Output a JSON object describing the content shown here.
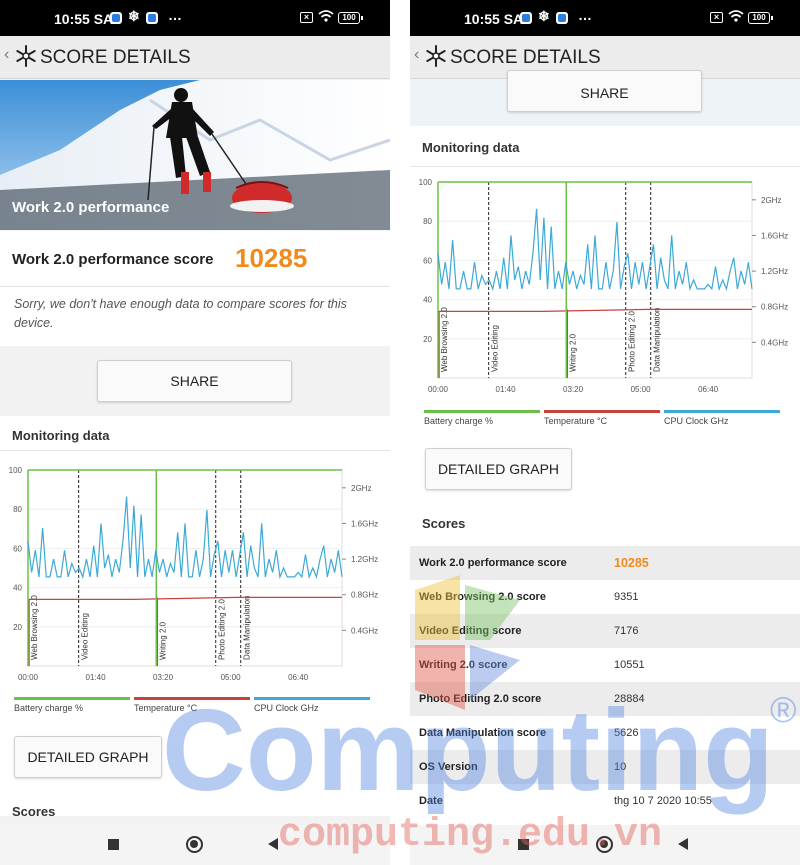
{
  "status_bar": {
    "time": "10:55 SA",
    "more": "…",
    "battery": "100"
  },
  "header": {
    "back_glyph": "‹",
    "title": "SCORE DETAILS"
  },
  "hero": {
    "title": "Work 2.0 performance",
    "image": "skier-pulling-sled-icon"
  },
  "score_card": {
    "label": "Work 2.0 performance score",
    "value": "10285"
  },
  "compare_note": "Sorry, we don't have enough data to compare scores for this device.",
  "share_label": "SHARE",
  "monitoring": {
    "title": "Monitoring data",
    "left_axis": [
      "100",
      "80",
      "60",
      "40",
      "20"
    ],
    "right_axis": [
      "2GHz",
      "1.6GHz",
      "1.2GHz",
      "0.8GHz",
      "0.4GHz"
    ],
    "time_axis": [
      "00:00",
      "01:40",
      "03:20",
      "05:00",
      "06:40"
    ],
    "sections": [
      "Web Browsing 2.0",
      "Video Editing",
      "Writing 2.0",
      "Photo Editing 2.0",
      "Data Manipulation"
    ],
    "legend": [
      {
        "label": "Battery charge %",
        "color": "#6cc04a"
      },
      {
        "label": "Temperature °C",
        "color": "#c9423c"
      },
      {
        "label": "CPU Clock GHz",
        "color": "#3da9d6"
      }
    ]
  },
  "chart_data": {
    "type": "line",
    "x_range_seconds": [
      0,
      465
    ],
    "x_ticks": [
      "00:00",
      "01:40",
      "03:20",
      "05:00",
      "06:40"
    ],
    "left_ylim": [
      0,
      100
    ],
    "right_ylim_ghz": [
      0,
      2.2
    ],
    "section_start_times": [
      "00:00",
      "01:15",
      "03:10",
      "04:38",
      "05:15"
    ],
    "series": [
      {
        "name": "Battery charge %",
        "color": "#6cc04a",
        "axis": "left",
        "values": [
          100,
          100
        ]
      },
      {
        "name": "Temperature °C",
        "color": "#c9423c",
        "axis": "left",
        "values": [
          34,
          34,
          35,
          35
        ]
      },
      {
        "name": "CPU Clock GHz",
        "color": "#3da9d6",
        "axis": "right",
        "values": [
          1.4,
          1.05,
          1.3,
          1.0,
          1.55,
          1.0,
          1.0,
          1.2,
          1.0,
          1.0,
          1.3,
          1.0,
          1.15,
          1.05,
          1.1,
          1.0,
          1.2,
          1.0,
          1.35,
          1.0,
          1.6,
          1.1,
          1.25,
          1.0,
          1.2,
          1.05,
          1.4,
          1.9,
          1.1,
          1.8,
          1.0,
          1.7,
          1.0,
          1.2,
          1.0,
          1.3,
          1.05,
          1.2,
          1.0,
          1.15,
          1.05,
          1.5,
          1.0,
          1.6,
          1.0,
          1.0,
          1.3,
          1.0,
          1.2,
          1.75,
          1.0,
          1.25,
          1.4,
          1.0,
          1.3,
          1.05,
          1.3,
          1.0,
          1.25,
          1.5,
          1.0,
          1.35,
          1.1,
          1.0,
          1.6,
          1.0,
          1.2,
          1.05,
          1.3,
          1.0,
          1.1,
          1.0,
          1.0,
          1.0,
          1.05,
          1.0,
          1.25,
          1.0,
          1.1,
          1.0,
          1.2,
          1.35,
          1.0,
          1.2,
          1.05,
          1.3,
          1.0
        ]
      }
    ]
  },
  "detailed_graph_label": "DETAILED GRAPH",
  "scores": {
    "title": "Scores",
    "rows": [
      {
        "label": "Work 2.0 performance score",
        "value": "10285"
      },
      {
        "label": "Web Browsing 2.0 score",
        "value": "9351"
      },
      {
        "label": "Video Editing score",
        "value": "7176"
      },
      {
        "label": "Writing 2.0 score",
        "value": "10551"
      },
      {
        "label": "Photo Editing 2.0 score",
        "value": "28884"
      },
      {
        "label": "Data Manipulation score",
        "value": "5626"
      },
      {
        "label": "OS Version",
        "value": "10"
      },
      {
        "label": "Date",
        "value": "thg 10 7 2020 10:55"
      }
    ]
  },
  "watermark": {
    "brand": "Computing",
    "registered": "®",
    "url": "computing.edu.vn"
  }
}
